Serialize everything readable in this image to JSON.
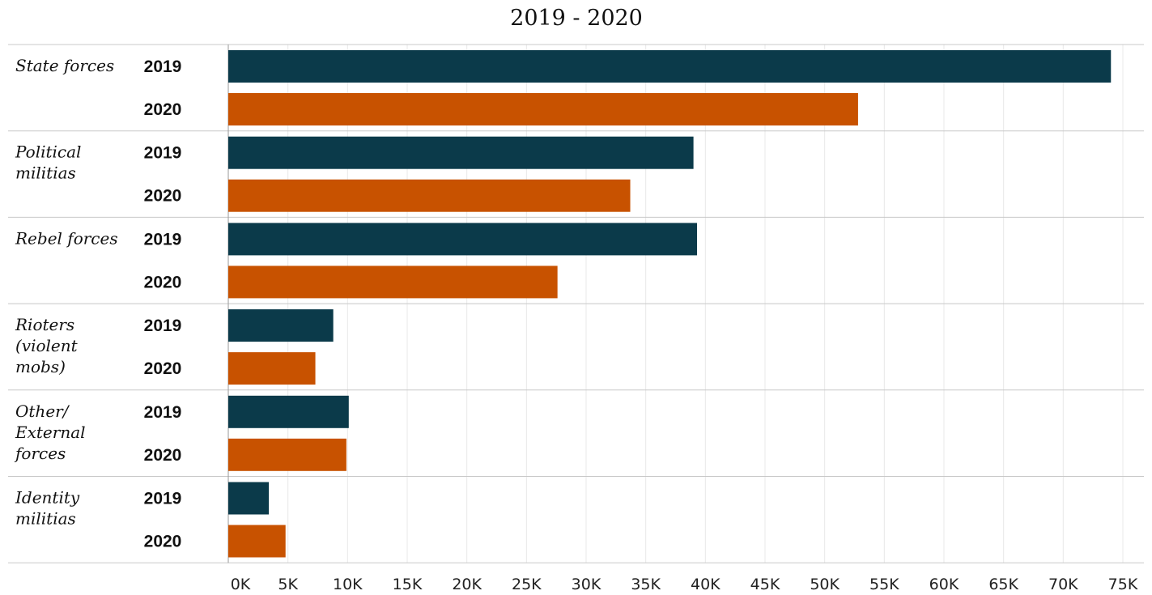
{
  "chart_data": {
    "type": "bar",
    "orientation": "horizontal",
    "title": "2019 - 2020",
    "xlabel": "",
    "ylabel": "",
    "categories": [
      {
        "label_lines": [
          "State forces"
        ]
      },
      {
        "label_lines": [
          "Political",
          "militias"
        ]
      },
      {
        "label_lines": [
          "Rebel forces"
        ]
      },
      {
        "label_lines": [
          "Rioters",
          "(violent",
          "mobs)"
        ]
      },
      {
        "label_lines": [
          "Other/",
          "External",
          "forces"
        ]
      },
      {
        "label_lines": [
          "Identity",
          "militias"
        ]
      }
    ],
    "series": [
      {
        "name": "2019",
        "color": "#0b3a4a",
        "values": [
          74000,
          39000,
          39300,
          8800,
          10100,
          3400
        ]
      },
      {
        "name": "2020",
        "color": "#c85200",
        "values": [
          52800,
          33700,
          27600,
          7300,
          9900,
          4800
        ]
      }
    ],
    "xlim": [
      0,
      75000
    ],
    "x_ticks": [
      0,
      5000,
      10000,
      15000,
      20000,
      25000,
      30000,
      35000,
      40000,
      45000,
      50000,
      55000,
      60000,
      65000,
      70000,
      75000
    ],
    "x_tick_labels": [
      "0K",
      "5K",
      "10K",
      "15K",
      "20K",
      "25K",
      "30K",
      "35K",
      "40K",
      "45K",
      "50K",
      "55K",
      "60K",
      "65K",
      "70K",
      "75K"
    ],
    "grid": true,
    "legend": "none"
  }
}
